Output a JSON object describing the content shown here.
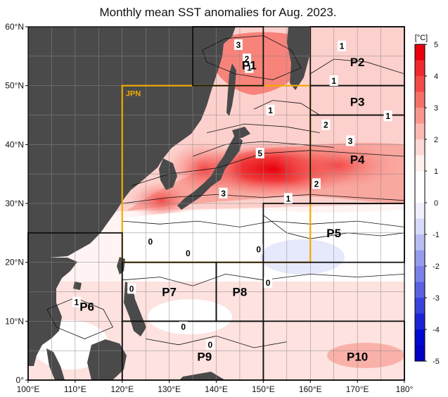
{
  "title": "Monthly mean SST anomalies for Aug. 2023.",
  "map": {
    "lon_range": [
      100,
      180
    ],
    "lat_range": [
      0,
      60
    ],
    "lon_ticks": [
      {
        "value": 100,
        "label": "100°E"
      },
      {
        "value": 110,
        "label": "110°E"
      },
      {
        "value": 120,
        "label": "120°E"
      },
      {
        "value": 130,
        "label": "130°E"
      },
      {
        "value": 140,
        "label": "140°E"
      },
      {
        "value": 150,
        "label": "150°E"
      },
      {
        "value": 160,
        "label": "160°E"
      },
      {
        "value": 170,
        "label": "170°E"
      },
      {
        "value": 180,
        "label": "180°"
      }
    ],
    "lat_ticks": [
      {
        "value": 0,
        "label": "0°"
      },
      {
        "value": 10,
        "label": "10°N"
      },
      {
        "value": 20,
        "label": "20°N"
      },
      {
        "value": 30,
        "label": "30°N"
      },
      {
        "value": 40,
        "label": "40°N"
      },
      {
        "value": 50,
        "label": "50°N"
      },
      {
        "value": 60,
        "label": "60°N"
      }
    ],
    "land_color": "#4a4a4a",
    "highlight_color": "#f2a900"
  },
  "regions": [
    {
      "label": "P1",
      "lon": [
        135,
        150
      ],
      "lat": [
        50,
        60
      ],
      "label_at": [
        147,
        53.5
      ]
    },
    {
      "label": "P2",
      "lon": [
        160,
        180
      ],
      "lat": [
        50,
        60
      ],
      "label_at": [
        170,
        54
      ]
    },
    {
      "label": "P3",
      "lon": [
        160,
        180
      ],
      "lat": [
        45,
        50
      ],
      "label_at": [
        170,
        47.3
      ]
    },
    {
      "label": "P4",
      "lon": [
        160,
        180
      ],
      "lat": [
        30,
        45
      ],
      "label_at": [
        170,
        37.5
      ]
    },
    {
      "label": "P5",
      "lon": [
        150,
        180
      ],
      "lat": [
        20,
        30
      ],
      "label_at": [
        165,
        25
      ]
    },
    {
      "label": "P6",
      "lon": [
        100,
        120
      ],
      "lat": [
        0,
        25
      ],
      "label_at": [
        112.5,
        12.5
      ]
    },
    {
      "label": "P7",
      "lon": [
        120,
        140
      ],
      "lat": [
        10,
        20
      ],
      "label_at": [
        130,
        15
      ]
    },
    {
      "label": "P8",
      "lon": [
        140,
        150
      ],
      "lat": [
        10,
        20
      ],
      "label_at": [
        145,
        15
      ]
    },
    {
      "label": "P9",
      "lon": [
        120,
        150
      ],
      "lat": [
        0,
        10
      ],
      "label_at": [
        137.5,
        4
      ]
    },
    {
      "label": "P10",
      "lon": [
        150,
        180
      ],
      "lat": [
        0,
        10
      ],
      "label_at": [
        170,
        4
      ]
    }
  ],
  "jpn_box": {
    "label": "JPN",
    "lon": [
      120,
      160
    ],
    "lat": [
      20,
      50
    ]
  },
  "contour_labels": [
    {
      "text": "3",
      "lon": 144.7,
      "lat": 56.9
    },
    {
      "text": "2",
      "lon": 146.5,
      "lat": 54.5
    },
    {
      "text": "1",
      "lon": 147,
      "lat": 53
    },
    {
      "text": "1",
      "lon": 166.7,
      "lat": 56.7
    },
    {
      "text": "1",
      "lon": 165,
      "lat": 50.8
    },
    {
      "text": "1",
      "lon": 151.5,
      "lat": 45.8
    },
    {
      "text": "1",
      "lon": 176.5,
      "lat": 44.8
    },
    {
      "text": "2",
      "lon": 163.3,
      "lat": 43.3
    },
    {
      "text": "3",
      "lon": 168.5,
      "lat": 40.6
    },
    {
      "text": "5",
      "lon": 149.3,
      "lat": 38.5
    },
    {
      "text": "2",
      "lon": 161.3,
      "lat": 33.3
    },
    {
      "text": "3",
      "lon": 141.5,
      "lat": 31.7
    },
    {
      "text": "1",
      "lon": 155.3,
      "lat": 30.8
    },
    {
      "text": "0",
      "lon": 126,
      "lat": 23.5
    },
    {
      "text": "0",
      "lon": 134,
      "lat": 21.5
    },
    {
      "text": "0",
      "lon": 149,
      "lat": 22.2
    },
    {
      "text": "0",
      "lon": 151,
      "lat": 16.5
    },
    {
      "text": "1",
      "lon": 110.3,
      "lat": 13.2
    },
    {
      "text": "0",
      "lon": 122,
      "lat": 15.5
    },
    {
      "text": "0",
      "lon": 133,
      "lat": 9
    },
    {
      "text": "0",
      "lon": 138.7,
      "lat": 6
    }
  ],
  "colorbar": {
    "unit": "[°C]",
    "min": -5,
    "max": 5,
    "tick_labels": [
      "5",
      "4",
      "3",
      "2",
      "1",
      "0",
      "-1",
      "-2",
      "-3",
      "-4",
      "-5"
    ],
    "colors": [
      "#e8000c",
      "#ee2a2e",
      "#f24a48",
      "#f6706a",
      "#f9968e",
      "#fbb9b2",
      "#fcd8d4",
      "#fff0ee",
      "#ffffff",
      "#ffffff",
      "#f0f0ff",
      "#d8daf9",
      "#b8bef3",
      "#969ced",
      "#7a82e8",
      "#5a62e2",
      "#3a42dc",
      "#1c22d6",
      "#0008d0",
      "#0000c4"
    ]
  }
}
